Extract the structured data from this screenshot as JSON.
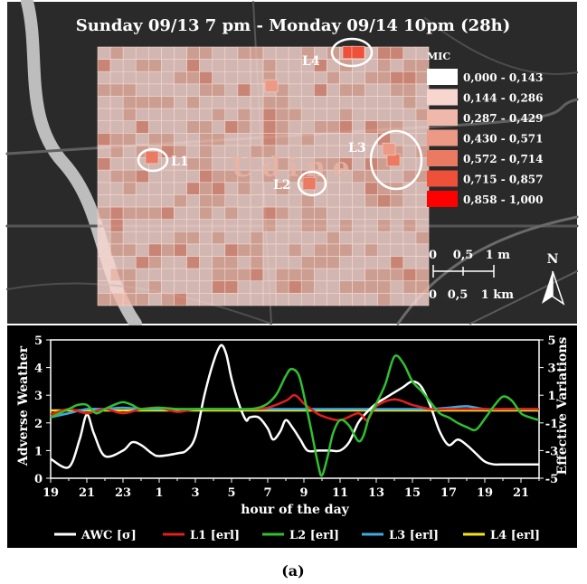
{
  "figure": {
    "title": "Sunday 09/13 7 pm - Monday 09/14 10pm (28h)",
    "caption": "(a)",
    "city_label": "Udine"
  },
  "map": {
    "legend_title": "MIC",
    "legend": [
      {
        "label": "0,000 - 0,143",
        "color": "#ffffff"
      },
      {
        "label": "0,144 - 0,286",
        "color": "#f6d6cf"
      },
      {
        "label": "0,287 - 0,429",
        "color": "#f0b8aa"
      },
      {
        "label": "0,430 - 0,571",
        "color": "#ec9a86"
      },
      {
        "label": "0,572 - 0,714",
        "color": "#ea7a62"
      },
      {
        "label": "0,715 - 0,857",
        "color": "#ee503a"
      },
      {
        "label": "0,858 - 1,000",
        "color": "#ff0000"
      }
    ],
    "locations": [
      "L1",
      "L2",
      "L3",
      "L4"
    ],
    "scale_miles": [
      "0",
      "0,5",
      "1 m"
    ],
    "scale_km": [
      "0",
      "0,5",
      "1 km"
    ],
    "north_label": "N"
  },
  "chart_data": {
    "type": "line",
    "xlabel": "hour of the day",
    "x_ticks": [
      "19",
      "21",
      "23",
      "1",
      "3",
      "5",
      "7",
      "9",
      "11",
      "13",
      "15",
      "17",
      "19",
      "21"
    ],
    "x_range_hours": [
      19,
      46
    ],
    "ylabel": "Adverse Weather",
    "ylim": [
      0,
      5
    ],
    "y_ticks": [
      0,
      1,
      2,
      3,
      4,
      5
    ],
    "y2label": "Effective Variations",
    "y2lim": [
      -5,
      5
    ],
    "y2_ticks": [
      -5,
      -3,
      -1,
      1,
      3,
      5
    ],
    "grid": false,
    "legend_position": "bottom",
    "series": [
      {
        "name": "AWC [σ]",
        "axis": "left",
        "color": "#ffffff",
        "x": [
          19,
          20,
          20.6,
          21,
          21.4,
          22,
          23,
          23.5,
          24,
          24.6,
          25,
          26,
          26.5,
          27,
          27.5,
          28,
          28.4,
          28.7,
          29,
          29.4,
          29.8,
          30,
          30.5,
          31,
          31.3,
          31.7,
          32,
          32.4,
          32.8,
          33.2,
          33.8,
          34,
          34.5,
          35,
          35.5,
          36,
          36.5,
          37,
          37.5,
          38,
          38.5,
          39,
          39.5,
          40,
          40.5,
          41,
          41.5,
          42,
          42.5,
          43,
          43.5,
          44,
          44.5,
          45,
          45.5,
          46
        ],
        "y": [
          0.7,
          0.4,
          1.4,
          2.3,
          1.6,
          0.8,
          1.0,
          1.3,
          1.2,
          0.9,
          0.8,
          0.9,
          1.0,
          1.5,
          3.0,
          4.2,
          4.8,
          4.5,
          3.6,
          2.7,
          2.1,
          2.2,
          2.2,
          1.8,
          1.4,
          1.7,
          2.1,
          1.8,
          1.4,
          1.0,
          1.0,
          1.0,
          1.0,
          1.0,
          1.3,
          2.0,
          2.4,
          2.7,
          2.9,
          3.1,
          3.3,
          3.5,
          3.3,
          2.6,
          1.7,
          1.2,
          1.4,
          1.2,
          0.9,
          0.6,
          0.5,
          0.5,
          0.5,
          0.5,
          0.5,
          0.5
        ]
      },
      {
        "name": "L1 [erl]",
        "axis": "right",
        "color": "#e0201a",
        "x": [
          19,
          20,
          21,
          22,
          23,
          24,
          25,
          26,
          27,
          28,
          29,
          30,
          31,
          32,
          32.5,
          33,
          33.5,
          34,
          35,
          36,
          36.5,
          37,
          38,
          39,
          40,
          41,
          42,
          43,
          44,
          45,
          46
        ],
        "y": [
          -0.4,
          0.0,
          -0.3,
          0.0,
          -0.3,
          0.0,
          0.1,
          -0.2,
          0.0,
          0.0,
          0.0,
          0.0,
          0.1,
          0.6,
          1.0,
          0.4,
          -0.1,
          -0.5,
          -0.8,
          -0.3,
          -0.8,
          0.2,
          0.7,
          0.3,
          0.0,
          0.0,
          0.0,
          0.0,
          0.0,
          0.0,
          0.0
        ]
      },
      {
        "name": "L2 [erl]",
        "axis": "right",
        "color": "#30c030",
        "x": [
          19,
          20,
          20.5,
          21,
          21.5,
          22,
          22.5,
          23,
          23.5,
          24,
          25,
          26,
          27,
          28,
          29,
          30,
          30.5,
          31,
          31.5,
          32,
          32.3,
          32.7,
          33,
          33.4,
          33.8,
          34,
          34.3,
          34.6,
          35,
          35.5,
          36,
          36.3,
          36.6,
          37,
          37.5,
          38,
          38.5,
          39,
          39.5,
          40,
          40.5,
          41,
          41.5,
          42,
          42.5,
          43,
          43.5,
          44,
          44.5,
          45,
          45.5,
          46
        ],
        "y": [
          -0.6,
          0.0,
          0.3,
          0.3,
          -0.3,
          0.0,
          0.3,
          0.5,
          0.3,
          0.0,
          0.1,
          0.0,
          0.0,
          0.0,
          0.0,
          0.0,
          0.1,
          0.4,
          1.1,
          2.4,
          2.9,
          2.5,
          1.0,
          -1.5,
          -4.1,
          -4.8,
          -3.5,
          -1.8,
          -0.8,
          -1.2,
          -2.3,
          -1.9,
          -0.6,
          0.4,
          1.8,
          3.8,
          3.3,
          2.0,
          1.3,
          0.5,
          -0.3,
          -0.6,
          -1.0,
          -1.3,
          -1.5,
          -0.7,
          0.2,
          0.9,
          0.6,
          -0.3,
          -0.6,
          -0.8
        ]
      },
      {
        "name": "L3 [erl]",
        "axis": "right",
        "color": "#3fa9e0",
        "x": [
          19,
          20,
          21,
          22,
          23,
          24,
          25,
          26,
          27,
          28,
          29,
          30,
          31,
          32,
          33,
          34,
          35,
          36,
          37,
          38,
          39,
          40,
          41,
          42,
          43,
          44,
          45,
          46
        ],
        "y": [
          -0.6,
          -0.3,
          0.0,
          0.0,
          0.1,
          0.0,
          0.0,
          0.0,
          0.0,
          0.0,
          0.0,
          0.0,
          0.0,
          0.0,
          0.0,
          0.0,
          0.0,
          0.0,
          0.0,
          0.0,
          0.0,
          0.0,
          0.1,
          0.2,
          0.0,
          0.0,
          0.0,
          0.0
        ]
      },
      {
        "name": "L4 [erl]",
        "axis": "right",
        "color": "#f2e41c",
        "x": [
          19,
          20,
          21,
          22,
          23,
          24,
          25,
          26,
          27,
          28,
          29,
          30,
          31,
          32,
          33,
          34,
          35,
          36,
          37,
          38,
          39,
          40,
          41,
          42,
          43,
          44,
          45,
          46
        ],
        "y": [
          -0.1,
          -0.1,
          -0.1,
          -0.1,
          -0.1,
          -0.1,
          -0.1,
          -0.1,
          -0.1,
          -0.1,
          -0.1,
          -0.1,
          -0.1,
          -0.1,
          -0.1,
          -0.1,
          -0.1,
          -0.1,
          -0.1,
          -0.1,
          -0.1,
          -0.1,
          -0.1,
          -0.1,
          -0.1,
          -0.1,
          -0.1,
          -0.1
        ]
      }
    ]
  }
}
